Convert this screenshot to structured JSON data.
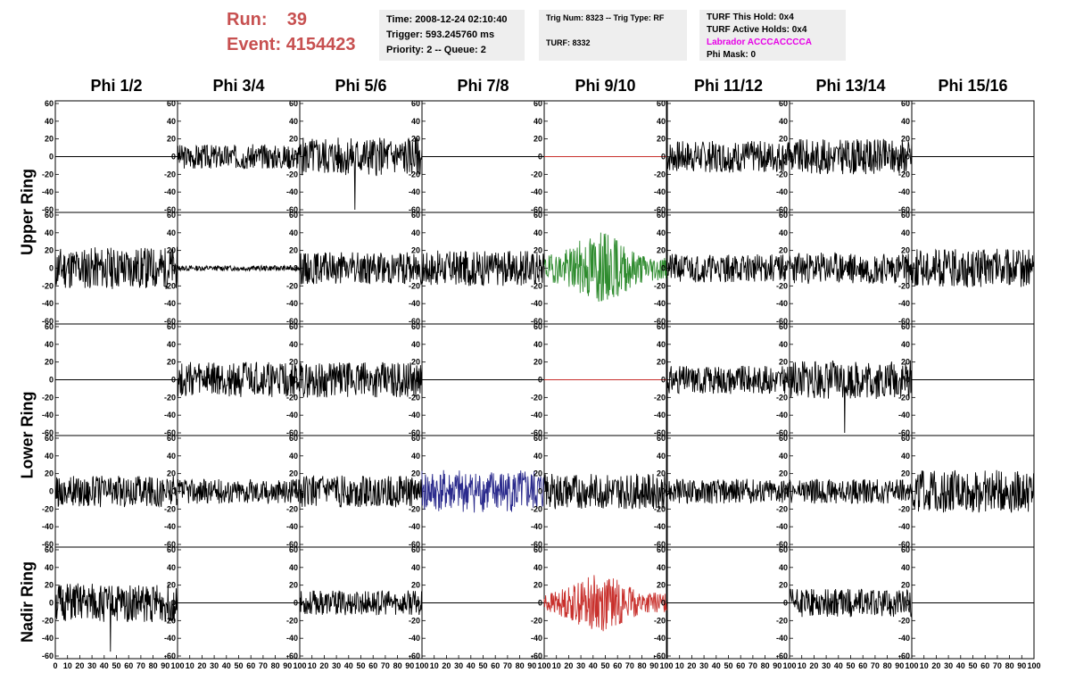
{
  "header": {
    "run_label": "Run:",
    "run_value": "39",
    "event_label": "Event:",
    "event_value": "4154423"
  },
  "info_time": {
    "time": "Time: 2008-12-24 02:10:40",
    "trigger": "Trigger: 593.245760 ms",
    "priority": "Priority: 2 -- Queue: 2"
  },
  "info_trig": {
    "trig": "Trig Num: 8323 -- Trig Type: RF",
    "turf": "TURF: 8332"
  },
  "info_turf": {
    "this_hold": "TURF This Hold: 0x4",
    "active_holds": "TURF Active Holds: 0x4",
    "labrador": "Labrador ACCCACCCCA",
    "phi_mask": "Phi Mask: 0"
  },
  "columns": [
    "Phi 1/2",
    "Phi 3/4",
    "Phi 5/6",
    "Phi 7/8",
    "Phi 9/10",
    "Phi 11/12",
    "Phi 13/14",
    "Phi 15/16"
  ],
  "rows": [
    "Upper Ring",
    "Lower Ring",
    "Nadir Ring"
  ],
  "chart_data": {
    "type": "line",
    "y_ticks": [
      60,
      40,
      20,
      0,
      -20,
      -40,
      -60
    ],
    "ylim": [
      -63,
      63
    ],
    "x_ticks": [
      0,
      10,
      20,
      30,
      40,
      50,
      60,
      70,
      80,
      90,
      100
    ],
    "xlim": [
      0,
      100
    ],
    "panels": [
      [
        {
          "state": "flat",
          "color": "#000000"
        },
        {
          "state": "noise",
          "amp": 14,
          "color": "#000000",
          "seed": 3
        },
        {
          "state": "noise",
          "amp": 22,
          "color": "#000000",
          "seed": 5,
          "spike": -60
        },
        {
          "state": "flat",
          "color": "#000000"
        },
        {
          "state": "flat",
          "color": "#c8302c"
        },
        {
          "state": "noise",
          "amp": 18,
          "color": "#000000",
          "seed": 7
        },
        {
          "state": "noise",
          "amp": 20,
          "color": "#000000",
          "seed": 9
        },
        {
          "state": "flat",
          "color": "#000000"
        }
      ],
      [
        {
          "state": "noise",
          "amp": 24,
          "color": "#000000",
          "seed": 11
        },
        {
          "state": "noise",
          "amp": 3,
          "color": "#000000",
          "seed": 13
        },
        {
          "state": "noise",
          "amp": 18,
          "color": "#000000",
          "seed": 15
        },
        {
          "state": "noise",
          "amp": 20,
          "color": "#000000",
          "seed": 17
        },
        {
          "state": "noise",
          "amp": 30,
          "color": "#2e8b2e",
          "seed": 19,
          "burst": true
        },
        {
          "state": "noise",
          "amp": 16,
          "color": "#000000",
          "seed": 21
        },
        {
          "state": "noise",
          "amp": 18,
          "color": "#000000",
          "seed": 23
        },
        {
          "state": "noise",
          "amp": 22,
          "color": "#000000",
          "seed": 25
        }
      ],
      [
        {
          "state": "flat",
          "color": "#000000"
        },
        {
          "state": "noise",
          "amp": 20,
          "color": "#000000",
          "seed": 27
        },
        {
          "state": "noise",
          "amp": 20,
          "color": "#000000",
          "seed": 29
        },
        {
          "state": "flat",
          "color": "#000000"
        },
        {
          "state": "flat",
          "color": "#c8302c"
        },
        {
          "state": "noise",
          "amp": 16,
          "color": "#000000",
          "seed": 31
        },
        {
          "state": "noise",
          "amp": 22,
          "color": "#000000",
          "seed": 33,
          "spike": -60
        },
        {
          "state": "flat",
          "color": "#000000"
        }
      ],
      [
        {
          "state": "noise",
          "amp": 18,
          "color": "#000000",
          "seed": 35
        },
        {
          "state": "noise",
          "amp": 14,
          "color": "#000000",
          "seed": 37
        },
        {
          "state": "noise",
          "amp": 18,
          "color": "#000000",
          "seed": 39
        },
        {
          "state": "noise",
          "amp": 24,
          "color": "#2a2a8c",
          "seed": 41
        },
        {
          "state": "noise",
          "amp": 20,
          "color": "#000000",
          "seed": 43
        },
        {
          "state": "noise",
          "amp": 14,
          "color": "#000000",
          "seed": 45
        },
        {
          "state": "noise",
          "amp": 14,
          "color": "#000000",
          "seed": 47
        },
        {
          "state": "noise",
          "amp": 24,
          "color": "#000000",
          "seed": 49
        }
      ],
      [
        {
          "state": "noise",
          "amp": 22,
          "color": "#000000",
          "seed": 51,
          "spike": -55
        },
        {
          "state": "flat",
          "color": "#000000"
        },
        {
          "state": "noise",
          "amp": 14,
          "color": "#000000",
          "seed": 53
        },
        {
          "state": "flat",
          "color": "#000000"
        },
        {
          "state": "noise",
          "amp": 24,
          "color": "#c8302c",
          "seed": 55,
          "burst": true
        },
        {
          "state": "flat",
          "color": "#000000"
        },
        {
          "state": "noise",
          "amp": 16,
          "color": "#000000",
          "seed": 57
        },
        {
          "state": "flat",
          "color": "#000000"
        }
      ]
    ]
  }
}
